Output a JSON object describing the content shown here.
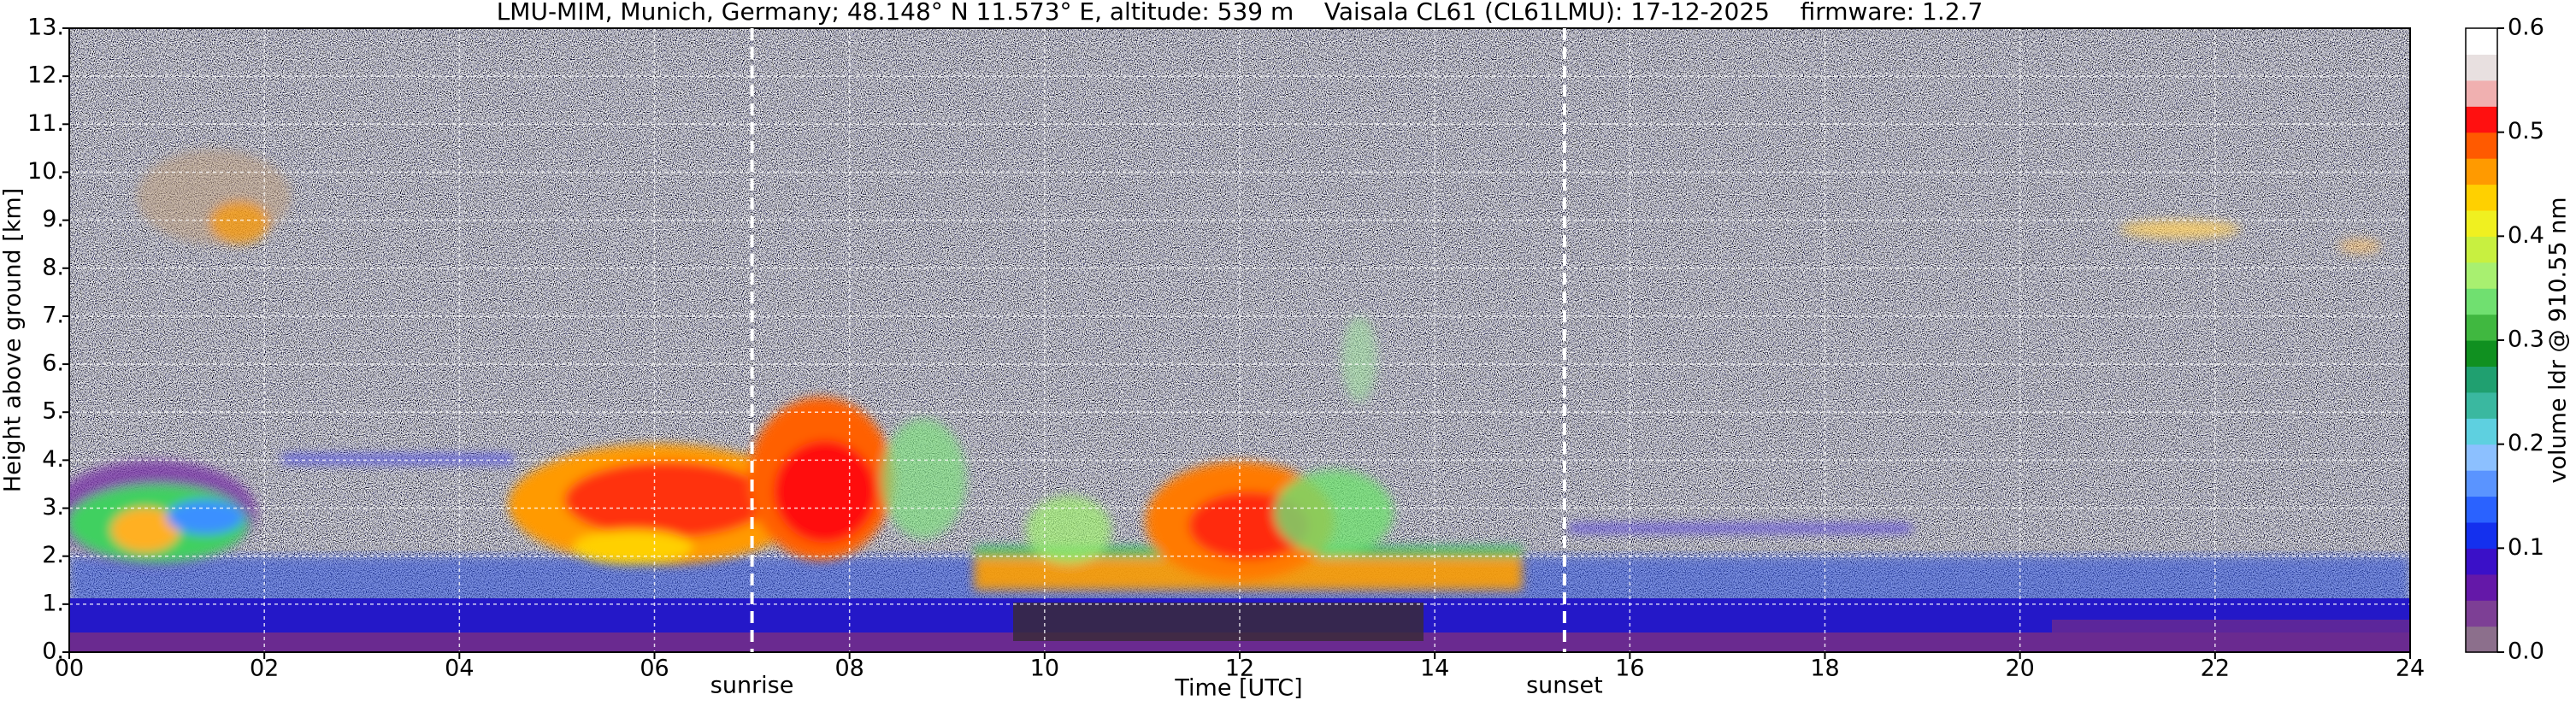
{
  "chart_data": {
    "type": "heatmap",
    "title": "LMU-MIM, Munich, Germany; 48.148° N 11.573° E, altitude: 539 m    Vaisala CL61 (CL61LMU): 17-12-2025    firmware: 1.2.7",
    "xlabel": "Time [UTC]",
    "ylabel": "Height above ground [km]",
    "xlim": [
      0,
      24
    ],
    "xticks": [
      {
        "value": 0,
        "label": "00"
      },
      {
        "value": 2,
        "label": "02"
      },
      {
        "value": 4,
        "label": "04"
      },
      {
        "value": 6,
        "label": "06"
      },
      {
        "value": 8,
        "label": "08"
      },
      10,
      12,
      14,
      16,
      18,
      20,
      22,
      24
    ],
    "ylim": [
      0,
      13
    ],
    "yticks": [
      {
        "value": 0,
        "label": "0."
      },
      {
        "value": 1,
        "label": "1."
      },
      {
        "value": 2,
        "label": "2."
      },
      {
        "value": 3,
        "label": "3."
      },
      {
        "value": 4,
        "label": "4."
      },
      {
        "value": 5,
        "label": "5."
      },
      {
        "value": 6,
        "label": "6."
      },
      {
        "value": 7,
        "label": "7."
      },
      {
        "value": 8,
        "label": "8."
      },
      {
        "value": 9,
        "label": "9."
      },
      {
        "value": 10,
        "label": "10."
      },
      {
        "value": 11,
        "label": "11."
      },
      {
        "value": 12,
        "label": "12."
      },
      {
        "value": 13,
        "label": "13."
      }
    ],
    "grid": true,
    "annotations": [
      {
        "text": "sunrise",
        "x": 7.0
      },
      {
        "text": "sunset",
        "x": 15.33
      }
    ],
    "colorbar": {
      "label": "volume ldr @ 910.55 nm",
      "lim": [
        0,
        0.6
      ],
      "ticks": [
        {
          "value": 0,
          "label": "0.0"
        },
        0.1,
        0.2,
        0.3,
        0.4,
        0.5,
        0.6
      ],
      "colors": [
        "#8c6f8c",
        "#7d3f95",
        "#6418a8",
        "#3a10c8",
        "#1430ee",
        "#2a62ff",
        "#5a94ff",
        "#8cc0ff",
        "#5ed0e0",
        "#3ab8a0",
        "#20a070",
        "#109020",
        "#40b840",
        "#70e070",
        "#a8f070",
        "#c8f040",
        "#f0f020",
        "#ffd000",
        "#ff9a00",
        "#ff5a00",
        "#ff1010",
        "#f0b0b0",
        "#e8e0e0",
        "#ffffff"
      ]
    }
  }
}
